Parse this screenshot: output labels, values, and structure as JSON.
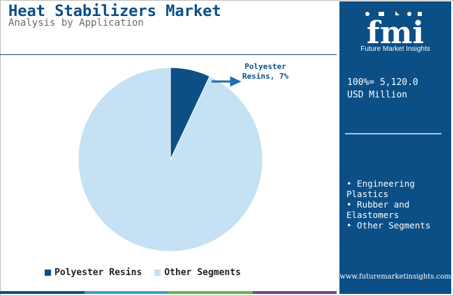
{
  "header": {
    "title": "Heat Stabilizers Market",
    "subtitle": "Analysis by Application"
  },
  "chart_data": {
    "type": "pie",
    "categories": [
      "Polyester Resins",
      "Other Segments"
    ],
    "values": [
      7,
      93
    ],
    "unit": "%",
    "colors": [
      "#0b4f86",
      "#c5e1f3"
    ],
    "annotations": [
      {
        "category": "Polyester Resins",
        "text_line1": "Polyester",
        "text_line2": "Resins, 7%"
      }
    ],
    "legend_placement": "bottom"
  },
  "legend": {
    "items": [
      {
        "label": "Polyester Resins",
        "color": "#0b4f86"
      },
      {
        "label": "Other Segments",
        "color": "#c5e1f3"
      }
    ]
  },
  "panel": {
    "brand": "fmi",
    "brand_sub": "Future Market Insights",
    "total_line1": "100%= 5,120.0",
    "total_line2": "USD Million",
    "segments": [
      "• Engineering Plastics",
      "• Rubber and Elastomers",
      "• Other Segments"
    ],
    "website": "www.futuremarketinsights.com",
    "background": "#0b4f86"
  },
  "footer_colors": [
    "#0b4f86",
    "#3aa0c8",
    "#6ab04c",
    "#7b3f98"
  ]
}
